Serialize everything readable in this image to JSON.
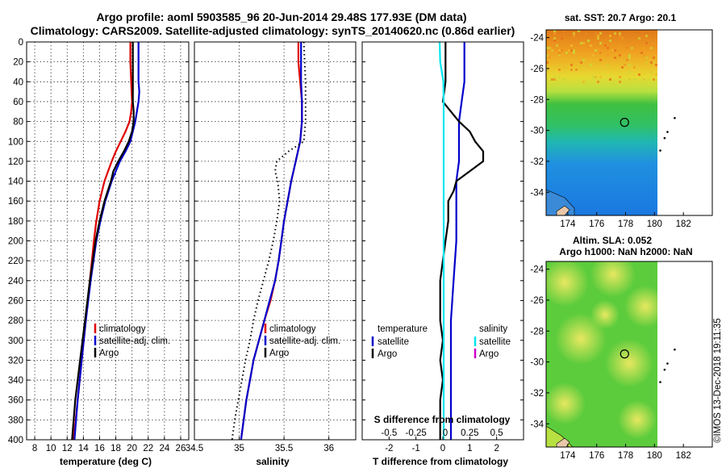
{
  "title_line1": "Argo profile: aoml 5903585_96 20-Jun-2014 29.48S 177.93E (DM data)",
  "title_line2": "Climatology: CARS2009. Satellite-adjusted climatology: synTS_20140620.nc (0.86d earlier)",
  "credit": "©IMOS 13-Dec-2018 19:11:35",
  "colors": {
    "climatology": "#e00000",
    "satellite": "#0000cc",
    "argo": "#000000",
    "sal_satellite": "#00e5ee",
    "sal_argo": "#cc00cc"
  },
  "chart_data": [
    {
      "type": "line",
      "name": "temperature_profile",
      "xlabel": "temperature (deg C)",
      "ylabel": "",
      "xlim": [
        7,
        27
      ],
      "ylim": [
        400,
        0
      ],
      "xticks": [
        8,
        10,
        12,
        14,
        16,
        18,
        20,
        22,
        24,
        26
      ],
      "yticks": [
        0,
        20,
        40,
        60,
        80,
        100,
        120,
        140,
        160,
        180,
        200,
        220,
        240,
        260,
        280,
        300,
        320,
        340,
        360,
        380,
        400
      ],
      "grid": true,
      "legend": [
        "climatology",
        "satellite-adj. clim.",
        "Argo"
      ],
      "legend_position": "lower-right",
      "series": [
        {
          "name": "climatology",
          "color_key": "climatology",
          "depth": [
            0,
            20,
            40,
            60,
            70,
            80,
            90,
            100,
            110,
            120,
            140,
            160,
            180,
            200,
            240,
            280,
            320,
            360,
            400
          ],
          "values": [
            19.8,
            19.8,
            19.9,
            20.0,
            19.9,
            19.7,
            19.2,
            18.6,
            18.0,
            17.5,
            16.6,
            16.0,
            15.6,
            15.3,
            14.8,
            14.3,
            13.8,
            13.3,
            12.8
          ]
        },
        {
          "name": "satellite-adj. clim.",
          "color_key": "satellite",
          "depth": [
            0,
            20,
            40,
            50,
            60,
            80,
            100,
            110,
            120,
            140,
            160,
            180,
            200,
            240,
            280,
            320,
            360,
            400
          ],
          "values": [
            20.8,
            20.8,
            20.8,
            20.9,
            20.8,
            20.4,
            19.8,
            19.2,
            18.5,
            17.5,
            16.7,
            16.1,
            15.6,
            14.9,
            14.3,
            13.8,
            13.3,
            12.9
          ]
        },
        {
          "name": "Argo",
          "color_key": "argo",
          "depth": [
            0,
            20,
            40,
            60,
            70,
            80,
            90,
            100,
            110,
            120,
            130,
            140,
            160,
            180,
            200,
            240,
            280,
            320,
            360,
            400
          ],
          "values": [
            20.1,
            20.1,
            20.1,
            20.1,
            20.2,
            20.2,
            20.0,
            19.6,
            19.0,
            18.3,
            17.7,
            17.4,
            16.6,
            16.0,
            15.5,
            14.8,
            14.2,
            13.6,
            13.0,
            12.6
          ]
        }
      ]
    },
    {
      "type": "line",
      "name": "salinity_profile",
      "xlabel": "salinity",
      "xlim": [
        34.5,
        36.3
      ],
      "ylim": [
        400,
        0
      ],
      "xticks": [
        34.5,
        35,
        35.5,
        36
      ],
      "xticklabels": [
        "34.5",
        "35",
        "35.5",
        "36"
      ],
      "grid": true,
      "legend": [
        "climatology",
        "satellite-adj. clim.",
        "Argo"
      ],
      "legend_position": "lower-right",
      "series": [
        {
          "name": "climatology",
          "color_key": "climatology",
          "depth": [
            0,
            20,
            40,
            60,
            80,
            100,
            120,
            140,
            160,
            180,
            200,
            220,
            240,
            260,
            280,
            300,
            320,
            340,
            360,
            380,
            400
          ],
          "values": [
            35.66,
            35.66,
            35.68,
            35.7,
            35.7,
            35.68,
            35.63,
            35.58,
            35.54,
            35.5,
            35.47,
            35.44,
            35.4,
            35.35,
            35.28,
            35.22,
            35.16,
            35.12,
            35.08,
            35.05,
            35.02
          ]
        },
        {
          "name": "satellite-adj. clim.",
          "color_key": "satellite",
          "depth": [
            0,
            20,
            40,
            60,
            80,
            100,
            120,
            140,
            160,
            180,
            200,
            220,
            240,
            260,
            280,
            300,
            320,
            340,
            360,
            380,
            400
          ],
          "values": [
            35.69,
            35.69,
            35.69,
            35.7,
            35.7,
            35.68,
            35.63,
            35.58,
            35.54,
            35.5,
            35.47,
            35.44,
            35.4,
            35.34,
            35.28,
            35.22,
            35.16,
            35.12,
            35.08,
            35.05,
            35.02
          ]
        },
        {
          "name": "Argo",
          "color_key": "argo",
          "dashed": true,
          "depth": [
            0,
            20,
            40,
            60,
            80,
            100,
            110,
            120,
            130,
            140,
            160,
            180,
            200,
            220,
            240,
            260,
            280,
            300,
            320,
            340,
            360,
            380,
            400
          ],
          "values": [
            35.72,
            35.73,
            35.74,
            35.74,
            35.74,
            35.72,
            35.55,
            35.42,
            35.4,
            35.43,
            35.45,
            35.42,
            35.38,
            35.33,
            35.27,
            35.21,
            35.16,
            35.12,
            35.07,
            35.03,
            34.99,
            34.95,
            34.92
          ]
        }
      ]
    },
    {
      "type": "line",
      "name": "difference_profile",
      "xlabel": "T difference from climatology",
      "xlabel_top": "S difference from climatology",
      "xlim": [
        -3,
        3
      ],
      "ylim": [
        400,
        0
      ],
      "xticks": [
        -2,
        -1,
        0,
        1,
        2
      ],
      "xticks_top_labels": [
        "-0.5",
        "-0.25",
        "0",
        "0.25",
        "0.5"
      ],
      "grid": false,
      "legend_temperature": {
        "heading": "temperature",
        "items": [
          "satellite",
          "Argo"
        ]
      },
      "legend_salinity": {
        "heading": "salinity",
        "items": [
          "satellite",
          "Argo"
        ]
      },
      "series": [
        {
          "name": "T satellite",
          "color_key": "satellite",
          "depth": [
            0,
            40,
            60,
            80,
            100,
            120,
            140,
            160,
            200,
            240,
            280,
            320,
            360,
            400
          ],
          "values": [
            0.8,
            0.8,
            0.7,
            0.6,
            0.6,
            0.6,
            0.5,
            0.5,
            0.5,
            0.4,
            0.3,
            0.3,
            0.3,
            0.3
          ]
        },
        {
          "name": "T Argo",
          "color_key": "argo",
          "depth": [
            0,
            20,
            40,
            60,
            70,
            80,
            90,
            100,
            110,
            120,
            130,
            140,
            150,
            160,
            180,
            200,
            240,
            280,
            300,
            320,
            340,
            360,
            380,
            400
          ],
          "values": [
            0.1,
            0.1,
            0.1,
            0.0,
            0.3,
            0.6,
            1.0,
            1.2,
            1.5,
            1.5,
            1.0,
            0.5,
            0.4,
            0.2,
            0.2,
            0.1,
            -0.1,
            -0.1,
            0.0,
            -0.1,
            0.0,
            -0.1,
            -0.1,
            -0.1
          ]
        },
        {
          "name": "S satellite",
          "color_key": "sal_satellite",
          "depth": [
            0,
            20,
            40,
            60,
            100,
            200,
            300,
            400
          ],
          "values": [
            -0.12,
            -0.1,
            0.02,
            0.03,
            0.03,
            0.03,
            0.03,
            0.03
          ]
        }
      ]
    },
    {
      "type": "heatmap",
      "name": "sst_map",
      "title": "sat. SST: 20.7 Argo: 20.1",
      "xticks": [
        174,
        176,
        178,
        180,
        182
      ],
      "yticks": [
        -24,
        -26,
        -28,
        -30,
        -32,
        -34
      ],
      "xlim": [
        172.5,
        184
      ],
      "ylim": [
        -35.5,
        -23.5
      ],
      "marker": {
        "lon": 177.93,
        "lat": -29.48
      }
    },
    {
      "type": "heatmap",
      "name": "sla_map",
      "title": "Altim. SLA: 0.052",
      "subtitle": "Argo h1000: NaN h2000: NaN",
      "xticks": [
        174,
        176,
        178,
        180,
        182
      ],
      "yticks": [
        -24,
        -26,
        -28,
        -30,
        -32,
        -34
      ],
      "xlim": [
        172.5,
        184
      ],
      "ylim": [
        -35.5,
        -23.5
      ],
      "marker": {
        "lon": 177.93,
        "lat": -29.48
      }
    }
  ]
}
